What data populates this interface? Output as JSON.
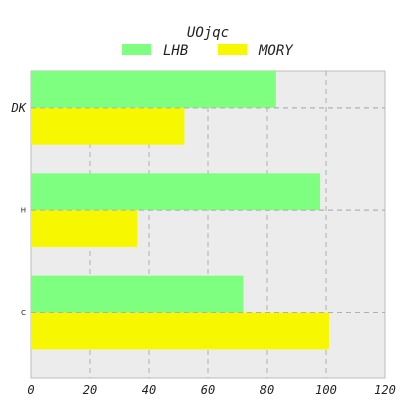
{
  "chart_data": {
    "type": "bar",
    "orientation": "horizontal",
    "title": "UOjqc",
    "categories": [
      "DK",
      "H",
      "C"
    ],
    "series": [
      {
        "name": "LHB",
        "color": "#7fff7f",
        "values": [
          83,
          98,
          72
        ]
      },
      {
        "name": "MORY",
        "color": "#f7f700",
        "values": [
          52,
          36,
          101
        ]
      }
    ],
    "xlim": [
      0,
      120
    ],
    "xticks": [
      "0",
      "20",
      "40",
      "60",
      "80",
      "100",
      "120"
    ],
    "grid": true,
    "legend_position": "top-center",
    "background": "#ececec"
  }
}
